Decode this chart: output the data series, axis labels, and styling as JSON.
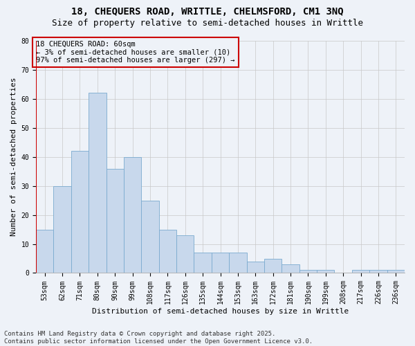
{
  "title": "18, CHEQUERS ROAD, WRITTLE, CHELMSFORD, CM1 3NQ",
  "subtitle": "Size of property relative to semi-detached houses in Writtle",
  "xlabel": "Distribution of semi-detached houses by size in Writtle",
  "ylabel": "Number of semi-detached properties",
  "categories": [
    "53sqm",
    "62sqm",
    "71sqm",
    "80sqm",
    "90sqm",
    "99sqm",
    "108sqm",
    "117sqm",
    "126sqm",
    "135sqm",
    "144sqm",
    "153sqm",
    "163sqm",
    "172sqm",
    "181sqm",
    "190sqm",
    "199sqm",
    "208sqm",
    "217sqm",
    "226sqm",
    "236sqm"
  ],
  "values": [
    15,
    30,
    42,
    62,
    36,
    40,
    25,
    15,
    13,
    7,
    7,
    7,
    4,
    5,
    3,
    1,
    1,
    0,
    1,
    1,
    1
  ],
  "bar_color": "#c8d8ec",
  "bar_edge_color": "#7aaacf",
  "ylim": [
    0,
    80
  ],
  "yticks": [
    0,
    10,
    20,
    30,
    40,
    50,
    60,
    70,
    80
  ],
  "grid_color": "#c8c8c8",
  "bg_color": "#eef2f8",
  "annotation_title": "18 CHEQUERS ROAD: 60sqm",
  "annotation_line1": "← 3% of semi-detached houses are smaller (10)",
  "annotation_line2": "97% of semi-detached houses are larger (297) →",
  "annotation_box_edge": "#cc0000",
  "red_line_color": "#cc0000",
  "footer_line1": "Contains HM Land Registry data © Crown copyright and database right 2025.",
  "footer_line2": "Contains public sector information licensed under the Open Government Licence v3.0.",
  "title_fontsize": 10,
  "subtitle_fontsize": 9,
  "axis_label_fontsize": 8,
  "tick_fontsize": 7,
  "annotation_fontsize": 7.5,
  "footer_fontsize": 6.5
}
